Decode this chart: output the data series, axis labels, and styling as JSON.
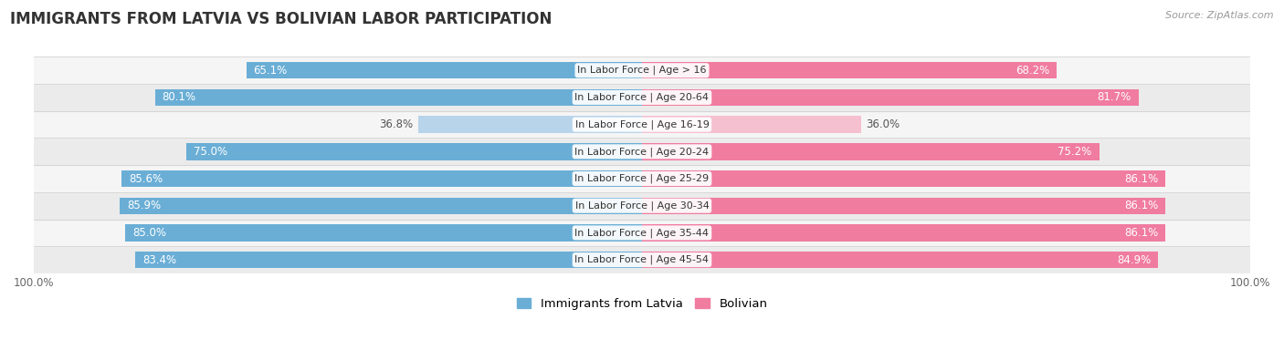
{
  "title": "IMMIGRANTS FROM LATVIA VS BOLIVIAN LABOR PARTICIPATION",
  "source": "Source: ZipAtlas.com",
  "categories": [
    "In Labor Force | Age > 16",
    "In Labor Force | Age 20-64",
    "In Labor Force | Age 16-19",
    "In Labor Force | Age 20-24",
    "In Labor Force | Age 25-29",
    "In Labor Force | Age 30-34",
    "In Labor Force | Age 35-44",
    "In Labor Force | Age 45-54"
  ],
  "latvia_values": [
    65.1,
    80.1,
    36.8,
    75.0,
    85.6,
    85.9,
    85.0,
    83.4
  ],
  "bolivian_values": [
    68.2,
    81.7,
    36.0,
    75.2,
    86.1,
    86.1,
    86.1,
    84.9
  ],
  "latvia_color": "#6aaed6",
  "latvia_color_light": "#b8d4ea",
  "bolivian_color": "#f07ca0",
  "bolivian_color_light": "#f5c0d0",
  "row_bg_even": "#f5f5f5",
  "row_bg_odd": "#ebebeb",
  "label_color_white": "#ffffff",
  "label_color_dark": "#555555",
  "max_value": 100.0,
  "bar_height": 0.62,
  "title_fontsize": 12,
  "label_fontsize": 8.5,
  "cat_fontsize": 8,
  "legend_fontsize": 9.5,
  "threshold": 50
}
